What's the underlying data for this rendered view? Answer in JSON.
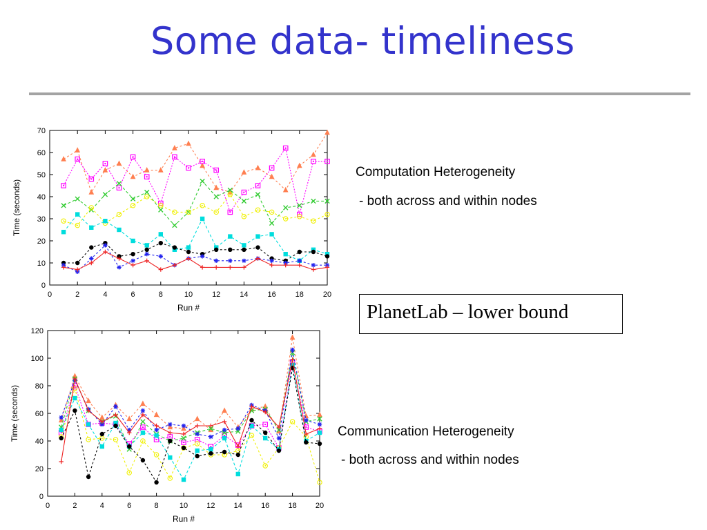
{
  "slide": {
    "title": "Some data- timeliness",
    "rule_color": "#a3a3a3",
    "title_color": "#3333cc"
  },
  "notes": {
    "computation_title": "Computation Heterogeneity",
    "computation_sub": "- both across and within nodes",
    "communication_title": "Communication Heterogeneity",
    "communication_sub": "- both across and within nodes",
    "callout": "PlanetLab – lower bound"
  },
  "chart_data": [
    {
      "type": "line",
      "title": "",
      "xlabel": "Run #",
      "ylabel": "Time (seconds)",
      "xlim": [
        0,
        20
      ],
      "ylim": [
        0,
        70
      ],
      "xticks": [
        0,
        2,
        4,
        6,
        8,
        10,
        12,
        14,
        16,
        18,
        20
      ],
      "yticks": [
        0,
        10,
        20,
        30,
        40,
        50,
        60,
        70
      ],
      "grid": false,
      "x": [
        1,
        2,
        3,
        4,
        5,
        6,
        7,
        8,
        9,
        10,
        11,
        12,
        13,
        14,
        15,
        16,
        17,
        18,
        19,
        20
      ],
      "series": [
        {
          "color": "#ff7f50",
          "marker": "triangle",
          "dash": "3,3",
          "values": [
            57,
            61,
            42,
            52,
            55,
            49,
            52,
            52,
            62,
            64,
            54,
            44,
            42,
            51,
            53,
            49,
            43,
            54,
            59,
            69
          ]
        },
        {
          "color": "#ff00ff",
          "marker": "square",
          "dash": "2,2",
          "values": [
            45,
            57,
            48,
            55,
            44,
            58,
            49,
            37,
            58,
            53,
            56,
            52,
            33,
            42,
            45,
            53,
            62,
            32,
            56,
            56
          ]
        },
        {
          "color": "#33cc33",
          "marker": "cross",
          "dash": "4,3",
          "values": [
            36,
            39,
            34,
            41,
            46,
            39,
            42,
            34,
            27,
            33,
            47,
            40,
            43,
            38,
            41,
            28,
            35,
            36,
            38,
            38
          ]
        },
        {
          "color": "#f0f000",
          "marker": "circle-open",
          "dash": "3,3",
          "values": [
            29,
            27,
            35,
            28,
            32,
            36,
            40,
            36,
            33,
            33,
            36,
            33,
            41,
            31,
            34,
            33,
            30,
            31,
            29,
            32
          ]
        },
        {
          "color": "#00dddd",
          "marker": "square-filled",
          "dash": "4,3",
          "values": [
            24,
            32,
            26,
            29,
            25,
            20,
            18,
            23,
            16,
            17,
            30,
            17,
            22,
            18,
            22,
            23,
            14,
            11,
            16,
            14
          ]
        },
        {
          "color": "#000000",
          "marker": "dot",
          "dash": "3,3",
          "values": [
            10,
            10,
            17,
            19,
            13,
            14,
            16,
            19,
            17,
            15,
            14,
            16,
            16,
            16,
            17,
            12,
            11,
            15,
            15,
            13
          ]
        },
        {
          "color": "#2222ee",
          "marker": "star",
          "dash": "3,3",
          "values": [
            9,
            6,
            12,
            18,
            8,
            11,
            14,
            13,
            9,
            12,
            13,
            11,
            11,
            11,
            12,
            11,
            10,
            11,
            9,
            9
          ]
        },
        {
          "color": "#ee2222",
          "marker": "plus",
          "dash": "",
          "values": [
            8,
            7,
            10,
            15,
            12,
            9,
            11,
            7,
            9,
            12,
            8,
            8,
            8,
            8,
            12,
            9,
            9,
            9,
            7,
            8
          ]
        }
      ]
    },
    {
      "type": "line",
      "title": "",
      "xlabel": "Run #",
      "ylabel": "Time (seconds)",
      "xlim": [
        0,
        20
      ],
      "ylim": [
        0,
        120
      ],
      "xticks": [
        0,
        2,
        4,
        6,
        8,
        10,
        12,
        14,
        16,
        18,
        20
      ],
      "yticks": [
        0,
        20,
        40,
        60,
        80,
        100,
        120
      ],
      "grid": false,
      "x": [
        1,
        2,
        3,
        4,
        5,
        6,
        7,
        8,
        9,
        10,
        11,
        12,
        13,
        14,
        15,
        16,
        17,
        18,
        19,
        20
      ],
      "series": [
        {
          "color": "#ff7f50",
          "marker": "triangle",
          "dash": "3,3",
          "values": [
            55,
            87,
            69,
            57,
            66,
            56,
            67,
            59,
            50,
            49,
            56,
            48,
            62,
            50,
            63,
            65,
            47,
            115,
            58,
            59
          ]
        },
        {
          "color": "#ff00ff",
          "marker": "square",
          "dash": "2,2",
          "values": [
            46,
            80,
            52,
            53,
            52,
            38,
            50,
            41,
            43,
            39,
            41,
            36,
            44,
            37,
            51,
            52,
            35,
            97,
            50,
            47
          ]
        },
        {
          "color": "#33cc33",
          "marker": "cross",
          "dash": "4,3",
          "values": [
            50,
            85,
            62,
            54,
            58,
            34,
            54,
            45,
            40,
            42,
            46,
            49,
            46,
            47,
            62,
            63,
            48,
            104,
            54,
            56
          ]
        },
        {
          "color": "#f0f000",
          "marker": "circle-open",
          "dash": "3,3",
          "values": [
            43,
            78,
            41,
            42,
            41,
            17,
            40,
            30,
            13,
            35,
            38,
            30,
            30,
            33,
            44,
            22,
            35,
            54,
            43,
            10
          ]
        },
        {
          "color": "#00dddd",
          "marker": "square-filled",
          "dash": "4,3",
          "values": [
            48,
            71,
            52,
            36,
            53,
            36,
            46,
            44,
            28,
            12,
            33,
            34,
            42,
            16,
            51,
            42,
            34,
            95,
            40,
            46
          ]
        },
        {
          "color": "#000000",
          "marker": "dot",
          "dash": "3,3",
          "values": [
            42,
            62,
            14,
            45,
            51,
            36,
            26,
            10,
            40,
            35,
            29,
            31,
            32,
            30,
            55,
            46,
            33,
            93,
            39,
            38
          ]
        },
        {
          "color": "#2222ee",
          "marker": "star",
          "dash": "3,3",
          "values": [
            57,
            84,
            63,
            52,
            65,
            48,
            62,
            48,
            52,
            51,
            45,
            43,
            48,
            49,
            66,
            62,
            42,
            106,
            55,
            52
          ]
        },
        {
          "color": "#ee2222",
          "marker": "plus",
          "dash": "",
          "values": [
            25,
            85,
            62,
            54,
            59,
            46,
            59,
            51,
            46,
            45,
            51,
            51,
            54,
            36,
            65,
            61,
            50,
            99,
            45,
            49
          ]
        }
      ]
    }
  ]
}
